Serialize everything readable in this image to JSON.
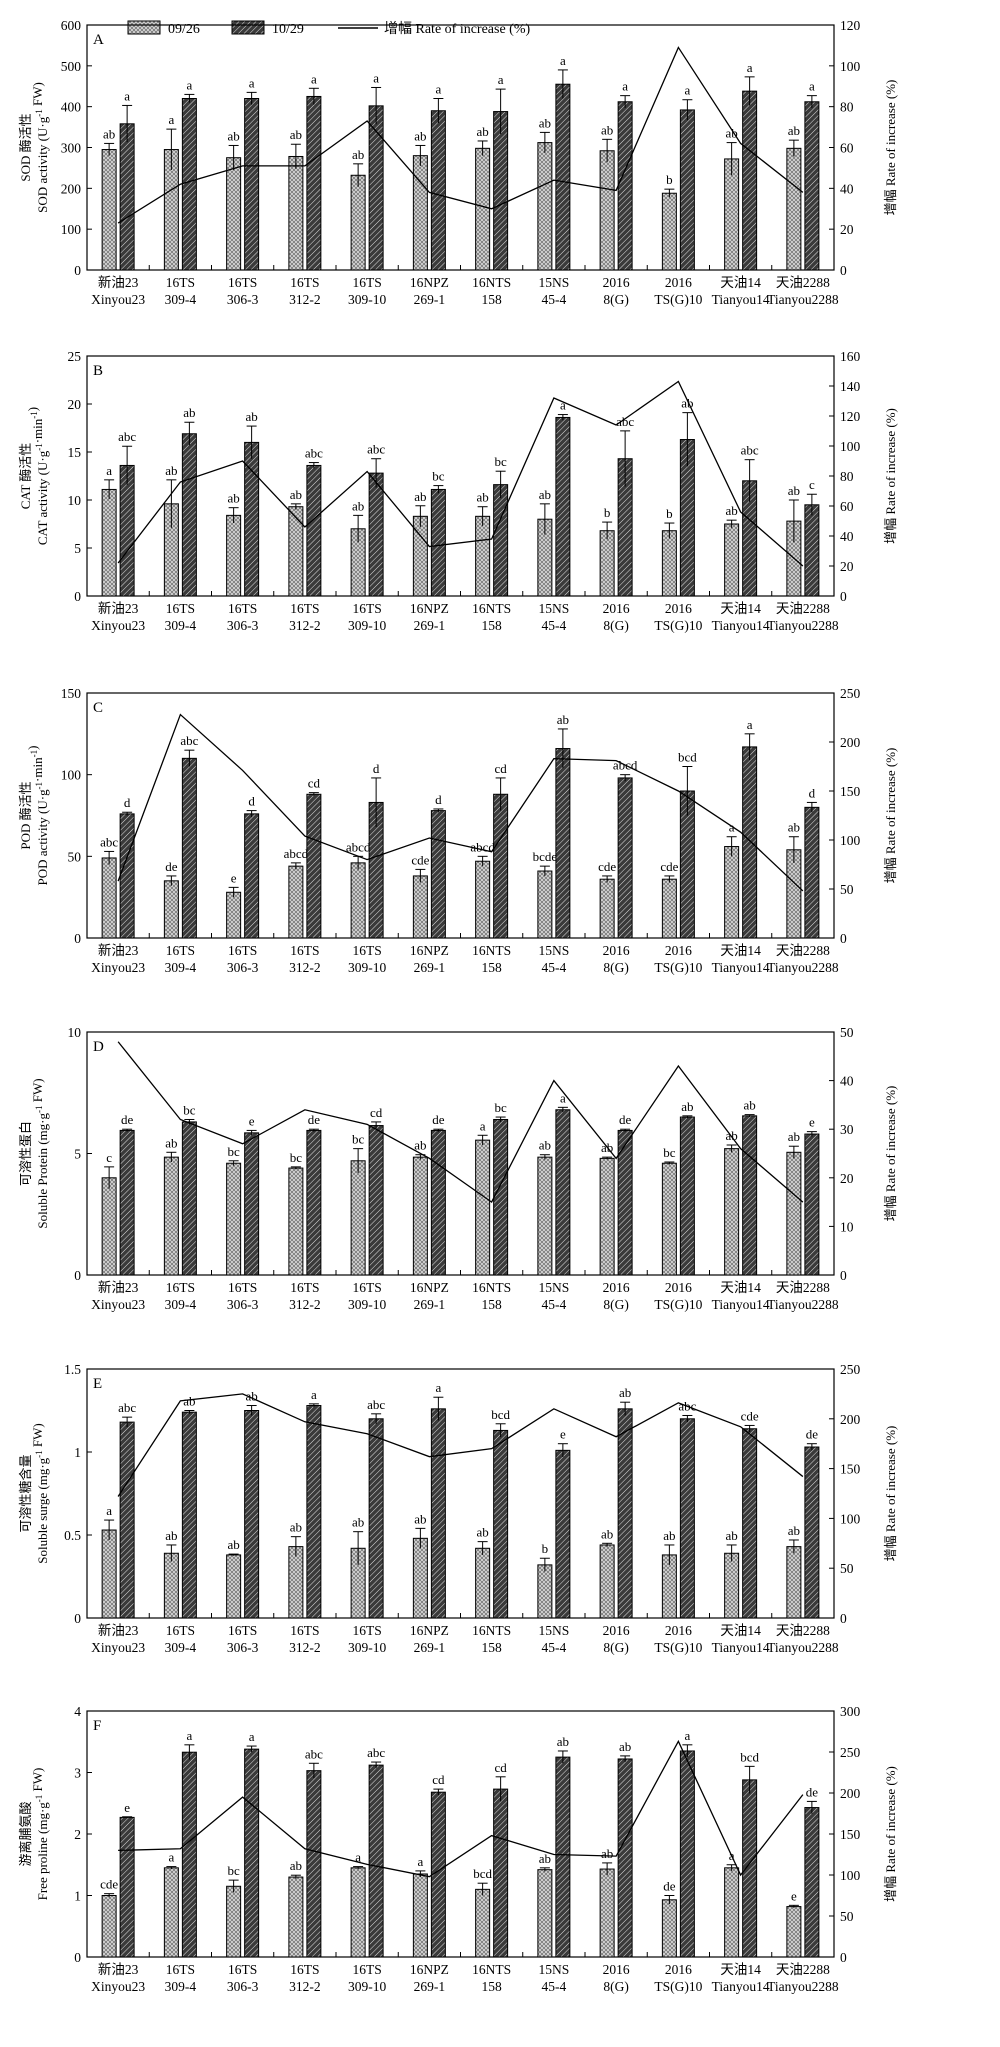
{
  "legend": {
    "s1": "09/26",
    "s2": "10/29",
    "line": "增幅 Rate of increase (%)"
  },
  "categories": [
    [
      "新油23",
      "Xinyou23"
    ],
    [
      "16TS",
      "309-4"
    ],
    [
      "16TS",
      "306-3"
    ],
    [
      "16TS",
      "312-2"
    ],
    [
      "16TS",
      "309-10"
    ],
    [
      "16NPZ",
      "269-1"
    ],
    [
      "16NTS",
      "158"
    ],
    [
      "15NS",
      "45-4"
    ],
    [
      "2016",
      "8(G)"
    ],
    [
      "2016",
      "TS(G)10"
    ],
    [
      "天油14",
      "Tianyou14"
    ],
    [
      "天油2288",
      "Tianyou2288"
    ]
  ],
  "colors": {
    "ink": "#000000",
    "s1_fill": "#d8d8d8",
    "s2_fill": "#3a3a3a"
  },
  "chart_data": [
    {
      "type": "bar",
      "panel": "A",
      "ylabel": [
        "SOD 酶活性",
        "SOD activity (U·g",
        "-1",
        " FW)"
      ],
      "y2label": "增幅 Rate of increase (%)",
      "ylim": [
        0,
        600
      ],
      "yticks": [
        0,
        100,
        200,
        300,
        400,
        500,
        600
      ],
      "y2lim": [
        0,
        120
      ],
      "y2ticks": [
        0,
        20,
        40,
        60,
        80,
        100,
        120
      ],
      "series": [
        {
          "name": "09/26",
          "values": [
            295,
            295,
            275,
            278,
            232,
            280,
            298,
            312,
            292,
            188,
            272,
            298
          ],
          "errors": [
            15,
            50,
            30,
            30,
            28,
            25,
            18,
            25,
            28,
            10,
            40,
            20
          ],
          "labels": [
            "ab",
            "a",
            "ab",
            "ab",
            "ab",
            "ab",
            "ab",
            "ab",
            "ab",
            "b",
            "ab",
            "ab"
          ]
        },
        {
          "name": "10/29",
          "values": [
            358,
            420,
            420,
            425,
            402,
            390,
            388,
            455,
            412,
            392,
            438,
            412
          ],
          "errors": [
            45,
            10,
            15,
            20,
            45,
            30,
            55,
            35,
            15,
            25,
            35,
            15
          ],
          "labels": [
            "a",
            "a",
            "a",
            "a",
            "a",
            "a",
            "a",
            "a",
            "a",
            "a",
            "a",
            "a"
          ]
        },
        {
          "name": "增幅 Rate of increase (%)",
          "axis": "right",
          "values": [
            23,
            42,
            51,
            51,
            73,
            38,
            30,
            44,
            39,
            109,
            62,
            38
          ]
        }
      ]
    },
    {
      "type": "bar",
      "panel": "B",
      "ylabel": [
        "CAT 酶活性",
        "CAT activity (U·g",
        "-1",
        "·min",
        "-1",
        ")"
      ],
      "y2label": "增幅 Rate of increase (%)",
      "ylim": [
        0,
        25
      ],
      "yticks": [
        0,
        5,
        10,
        15,
        20,
        25
      ],
      "y2lim": [
        0,
        160
      ],
      "y2ticks": [
        0,
        20,
        40,
        60,
        80,
        100,
        120,
        140,
        160
      ],
      "series": [
        {
          "name": "09/26",
          "values": [
            11.1,
            9.6,
            8.4,
            9.3,
            7.0,
            8.3,
            8.3,
            8.0,
            6.8,
            6.8,
            7.5,
            7.8
          ],
          "errors": [
            1.0,
            2.5,
            0.8,
            0.3,
            1.4,
            1.1,
            1.0,
            1.6,
            0.9,
            0.8,
            0.4,
            2.2
          ],
          "labels": [
            "a",
            "ab",
            "ab",
            "ab",
            "ab",
            "ab",
            "ab",
            "ab",
            "b",
            "b",
            "ab",
            "ab"
          ]
        },
        {
          "name": "10/29",
          "values": [
            13.6,
            16.9,
            16.0,
            13.6,
            12.8,
            11.1,
            11.6,
            18.6,
            14.3,
            16.3,
            12.0,
            9.5
          ],
          "errors": [
            2.0,
            1.2,
            1.7,
            0.3,
            1.5,
            0.4,
            1.4,
            0.3,
            2.9,
            2.8,
            2.2,
            1.1
          ],
          "labels": [
            "abc",
            "ab",
            "ab",
            "abc",
            "abc",
            "bc",
            "bc",
            "a",
            "abc",
            "ab",
            "abc",
            "c"
          ]
        },
        {
          "name": "增幅 Rate of increase (%)",
          "axis": "right",
          "values": [
            22,
            76,
            90,
            46,
            83,
            33,
            38,
            132,
            114,
            143,
            56,
            20
          ]
        }
      ]
    },
    {
      "type": "bar",
      "panel": "C",
      "ylabel": [
        "POD 酶活性",
        "POD activity (U·g",
        "-1",
        "·min",
        "-1",
        ")"
      ],
      "y2label": "增幅 Rate of increase (%)",
      "ylim": [
        0,
        150
      ],
      "yticks": [
        0,
        50,
        100,
        150
      ],
      "y2lim": [
        0,
        250
      ],
      "y2ticks": [
        0,
        50,
        100,
        150,
        200,
        250
      ],
      "series": [
        {
          "name": "09/26",
          "values": [
            49,
            35,
            28,
            44,
            46,
            38,
            47,
            41,
            36,
            36,
            56,
            54
          ],
          "errors": [
            4,
            3,
            3,
            2,
            4,
            4,
            3,
            3,
            2,
            2,
            6,
            8
          ],
          "labels": [
            "abc",
            "de",
            "e",
            "abcd",
            "abcd",
            "cde",
            "abcd",
            "bcde",
            "cde",
            "cde",
            "a",
            "ab"
          ]
        },
        {
          "name": "10/29",
          "values": [
            76,
            110,
            76,
            88,
            83,
            78,
            88,
            116,
            98,
            90,
            117,
            80
          ],
          "errors": [
            1,
            5,
            2,
            1,
            15,
            1,
            10,
            12,
            2,
            15,
            8,
            3
          ],
          "labels": [
            "d",
            "abc",
            "d",
            "cd",
            "d",
            "d",
            "cd",
            "ab",
            "abcd",
            "bcd",
            "a",
            "d"
          ]
        },
        {
          "name": "增幅 Rate of increase (%)",
          "axis": "right",
          "values": [
            58,
            228,
            171,
            104,
            80,
            102,
            88,
            183,
            181,
            150,
            108,
            48
          ]
        }
      ]
    },
    {
      "type": "bar",
      "panel": "D",
      "ylabel": [
        "可溶性蛋白",
        "Soluble Protein (mg·g",
        "-1",
        " FW)"
      ],
      "y2label": "增幅 Rate of increase (%)",
      "ylim": [
        0,
        10
      ],
      "yticks": [
        0,
        5,
        10
      ],
      "y2lim": [
        0,
        50
      ],
      "y2ticks": [
        0,
        10,
        20,
        30,
        40,
        50
      ],
      "series": [
        {
          "name": "09/26",
          "values": [
            4.0,
            4.85,
            4.6,
            4.4,
            4.7,
            4.85,
            5.55,
            4.85,
            4.8,
            4.6,
            5.2,
            5.05
          ],
          "errors": [
            0.45,
            0.2,
            0.1,
            0.05,
            0.5,
            0.1,
            0.2,
            0.1,
            0.05,
            0.05,
            0.15,
            0.25
          ],
          "labels": [
            "c",
            "ab",
            "bc",
            "bc",
            "bc",
            "ab",
            "a",
            "ab",
            "ab",
            "bc",
            "ab",
            "ab"
          ]
        },
        {
          "name": "10/29",
          "values": [
            5.95,
            6.3,
            5.85,
            5.95,
            6.15,
            5.95,
            6.4,
            6.8,
            5.95,
            6.5,
            6.55,
            5.8
          ],
          "errors": [
            0.05,
            0.1,
            0.1,
            0.05,
            0.15,
            0.05,
            0.1,
            0.1,
            0.05,
            0.05,
            0.05,
            0.1
          ],
          "labels": [
            "de",
            "bc",
            "e",
            "de",
            "cd",
            "de",
            "bc",
            "a",
            "de",
            "ab",
            "ab",
            "e"
          ]
        },
        {
          "name": "增幅 Rate of increase (%)",
          "axis": "right",
          "values": [
            48,
            32,
            27,
            34,
            31,
            24,
            15,
            40,
            24,
            43,
            26,
            15
          ]
        }
      ]
    },
    {
      "type": "bar",
      "panel": "E",
      "ylabel": [
        "可溶性糖含量",
        "Soluble surge (mg·g",
        "-1",
        " FW)"
      ],
      "y2label": "增幅 Rate of increase (%)",
      "ylim": [
        0,
        1.5
      ],
      "yticks": [
        0,
        0.5,
        1.0,
        1.5
      ],
      "y2lim": [
        0,
        250
      ],
      "y2ticks": [
        0,
        50,
        100,
        150,
        200,
        250
      ],
      "series": [
        {
          "name": "09/26",
          "values": [
            0.53,
            0.39,
            0.38,
            0.43,
            0.42,
            0.48,
            0.42,
            0.32,
            0.44,
            0.38,
            0.39,
            0.43
          ],
          "errors": [
            0.06,
            0.05,
            0.005,
            0.06,
            0.1,
            0.06,
            0.04,
            0.04,
            0.01,
            0.06,
            0.05,
            0.04
          ],
          "labels": [
            "a",
            "ab",
            "ab",
            "ab",
            "ab",
            "ab",
            "ab",
            "b",
            "ab",
            "ab",
            "ab",
            "ab"
          ]
        },
        {
          "name": "10/29",
          "values": [
            1.18,
            1.24,
            1.25,
            1.28,
            1.2,
            1.26,
            1.13,
            1.01,
            1.26,
            1.2,
            1.14,
            1.03
          ],
          "errors": [
            0.03,
            0.01,
            0.03,
            0.01,
            0.03,
            0.07,
            0.04,
            0.04,
            0.04,
            0.02,
            0.02,
            0.02
          ],
          "labels": [
            "abc",
            "ab",
            "ab",
            "a",
            "abc",
            "a",
            "bcd",
            "e",
            "ab",
            "abc",
            "cde",
            "de"
          ]
        },
        {
          "name": "增幅 Rate of increase (%)",
          "axis": "right",
          "values": [
            122,
            218,
            225,
            197,
            185,
            162,
            170,
            210,
            182,
            216,
            192,
            142
          ]
        }
      ]
    },
    {
      "type": "bar",
      "panel": "F",
      "ylabel": [
        "游离脯氨酸",
        "Free proline (mg·g",
        "-1",
        " FW)"
      ],
      "y2label": "增幅 Rate of increase (%)",
      "ylim": [
        0,
        4
      ],
      "yticks": [
        0,
        1,
        2,
        3,
        4
      ],
      "y2lim": [
        0,
        300
      ],
      "y2ticks": [
        0,
        50,
        100,
        150,
        200,
        250,
        300
      ],
      "series": [
        {
          "name": "09/26",
          "values": [
            1.0,
            1.45,
            1.15,
            1.3,
            1.45,
            1.35,
            1.1,
            1.42,
            1.43,
            0.93,
            1.45,
            0.82
          ],
          "errors": [
            0.03,
            0.02,
            0.1,
            0.03,
            0.02,
            0.05,
            0.1,
            0.03,
            0.1,
            0.07,
            0.05,
            0.02
          ],
          "labels": [
            "cde",
            "a",
            "bc",
            "ab",
            "a",
            "a",
            "bcd",
            "ab",
            "ab",
            "de",
            "a",
            "e"
          ]
        },
        {
          "name": "10/29",
          "values": [
            2.27,
            3.33,
            3.38,
            3.03,
            3.12,
            2.68,
            2.73,
            3.25,
            3.22,
            3.35,
            2.88,
            2.43
          ],
          "errors": [
            0.01,
            0.12,
            0.05,
            0.12,
            0.05,
            0.05,
            0.2,
            0.1,
            0.05,
            0.1,
            0.22,
            0.1
          ],
          "labels": [
            "e",
            "a",
            "a",
            "abc",
            "abc",
            "cd",
            "cd",
            "ab",
            "ab",
            "a",
            "bcd",
            "de"
          ]
        },
        {
          "name": "增幅 Rate of increase (%)",
          "axis": "right",
          "values": [
            130,
            132,
            195,
            132,
            113,
            98,
            148,
            125,
            123,
            263,
            100,
            198
          ]
        }
      ]
    }
  ]
}
